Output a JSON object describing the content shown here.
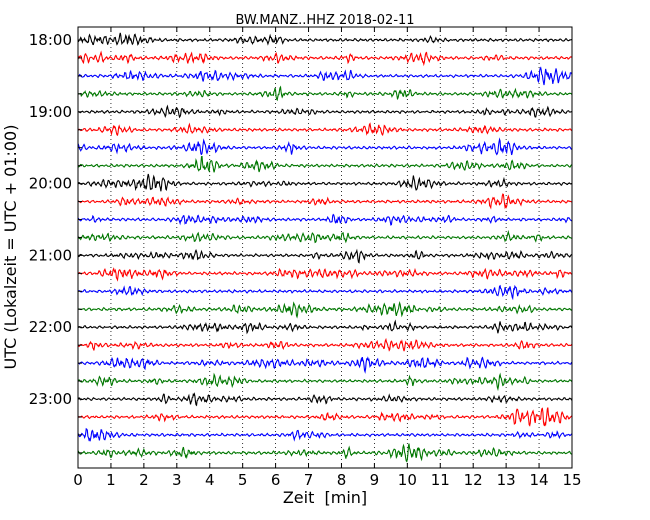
{
  "chart_data": {
    "type": "line",
    "title": "BW.MANZ..HHZ 2018-02-11",
    "xlabel": "Zeit  [min]",
    "ylabel": "UTC (Lokalzeit = UTC + 01:00)",
    "xlim": [
      0,
      15
    ],
    "x_ticks": [
      "0",
      "1",
      "2",
      "3",
      "4",
      "5",
      "6",
      "7",
      "8",
      "9",
      "10",
      "11",
      "12",
      "13",
      "14",
      "15"
    ],
    "y_tick_labels": [
      "18:00",
      "19:00",
      "20:00",
      "21:00",
      "22:00",
      "23:00"
    ],
    "trace_interval_minutes": 15,
    "traces_per_hour": 4,
    "color_cycle": [
      "#000000",
      "#ff0000",
      "#0000ff",
      "#007700"
    ],
    "grid": "vertical dotted lines at each minute",
    "traces": [
      {
        "start": "18:00"
      },
      {
        "start": "18:15"
      },
      {
        "start": "18:30"
      },
      {
        "start": "18:45"
      },
      {
        "start": "19:00"
      },
      {
        "start": "19:15"
      },
      {
        "start": "19:30"
      },
      {
        "start": "19:45"
      },
      {
        "start": "20:00"
      },
      {
        "start": "20:15"
      },
      {
        "start": "20:30"
      },
      {
        "start": "20:45"
      },
      {
        "start": "21:00"
      },
      {
        "start": "21:15"
      },
      {
        "start": "21:30"
      },
      {
        "start": "21:45"
      },
      {
        "start": "22:00"
      },
      {
        "start": "22:15"
      },
      {
        "start": "22:30"
      },
      {
        "start": "22:45"
      },
      {
        "start": "23:00"
      },
      {
        "start": "23:15"
      },
      {
        "start": "23:30"
      },
      {
        "start": "23:45"
      }
    ]
  }
}
